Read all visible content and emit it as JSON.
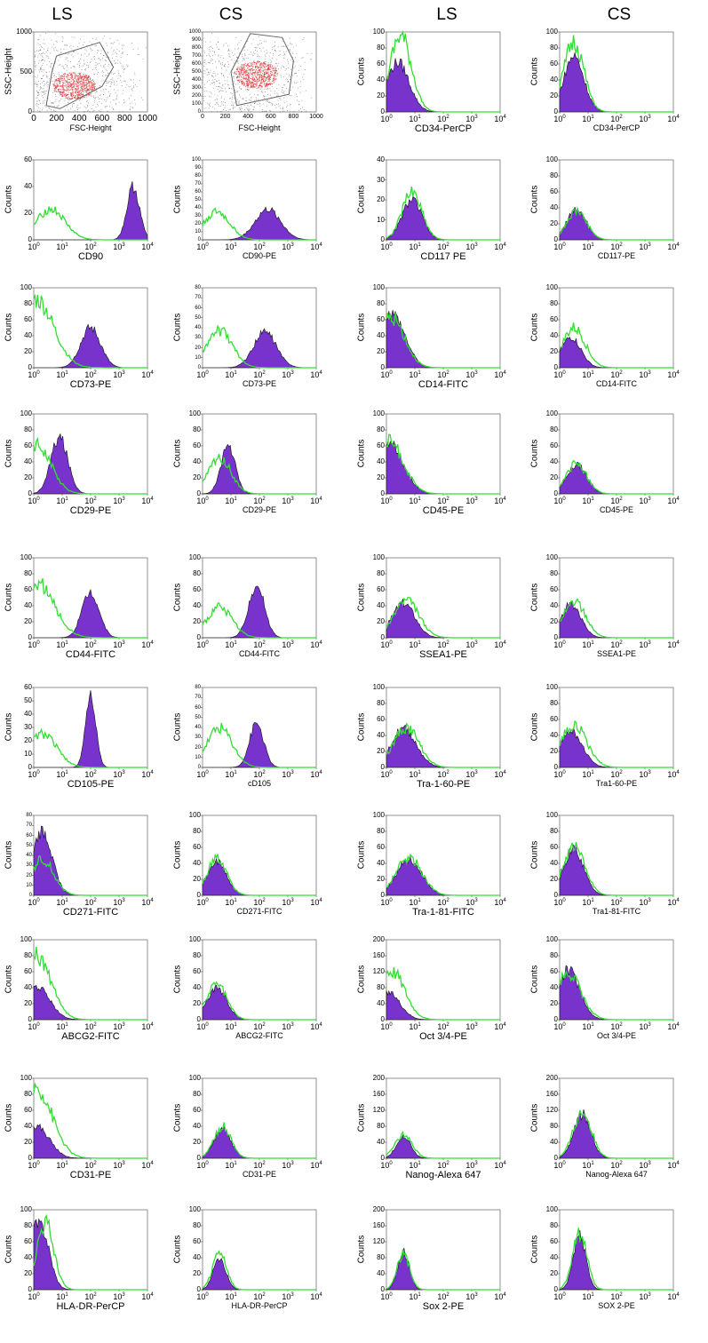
{
  "header": {
    "columns": [
      "LS",
      "CS",
      "LS",
      "CS"
    ]
  },
  "colors": {
    "isotype": "#33dd33",
    "stained_fill": "#7733cc",
    "stained_outline": "#111111",
    "scatter_dense": "#e03030",
    "scatter_sparse": "#222222"
  },
  "chart_data": [
    {
      "type": "scatter",
      "col": 0,
      "row": 0,
      "xlabel": "FSC-Height",
      "ylabel": "SSC-Height",
      "xticks": [
        "0",
        "200",
        "400",
        "600",
        "800",
        "1000"
      ],
      "yticks": [
        "1000",
        "500",
        "0"
      ],
      "xlim": [
        0,
        1000
      ],
      "ylim": [
        0,
        1000
      ],
      "gate": [
        [
          110,
          80
        ],
        [
          230,
          40
        ],
        [
          600,
          320
        ],
        [
          700,
          560
        ],
        [
          580,
          870
        ],
        [
          200,
          700
        ],
        [
          160,
          500
        ]
      ],
      "center": [
        350,
        330
      ]
    },
    {
      "type": "scatter",
      "col": 1,
      "row": 0,
      "xlabel": "FSC-Height",
      "ylabel": "SSC-Height",
      "xticks": [
        "0",
        "200",
        "400",
        "600",
        "800",
        "1000"
      ],
      "yticks": [
        "1000",
        "900",
        "800",
        "700",
        "600",
        "500",
        "400",
        "300",
        "200",
        "100",
        "0"
      ],
      "xlim": [
        0,
        1000
      ],
      "ylim": [
        0,
        1000
      ],
      "gate": [
        [
          300,
          80
        ],
        [
          760,
          220
        ],
        [
          800,
          640
        ],
        [
          700,
          930
        ],
        [
          420,
          980
        ],
        [
          250,
          500
        ]
      ],
      "center": [
        470,
        470
      ]
    },
    {
      "type": "area",
      "col": 2,
      "row": 0,
      "xlabel": "CD34-PerCP",
      "ylabel": "Counts",
      "ylim": [
        0,
        100
      ],
      "yticks": [
        "0",
        "20",
        "40",
        "60",
        "80",
        "100"
      ],
      "stained": {
        "peak": 0.4,
        "width": 0.4,
        "height": 62
      },
      "isotype": {
        "peak": 0.5,
        "width": 0.38,
        "height": 95
      }
    },
    {
      "type": "area",
      "col": 3,
      "row": 0,
      "xlabel": "CD34-PerCP",
      "ylabel": "Counts",
      "ylim": [
        0,
        100
      ],
      "yticks": [
        "0",
        "20",
        "40",
        "60",
        "80",
        "100"
      ],
      "stained": {
        "peak": 0.5,
        "width": 0.35,
        "height": 70
      },
      "isotype": {
        "peak": 0.5,
        "width": 0.35,
        "height": 88
      }
    },
    {
      "type": "area",
      "col": 0,
      "row": 1,
      "xlabel": "CD90",
      "ylabel": "Counts",
      "ylim": [
        0,
        60
      ],
      "yticks": [
        "0",
        "20",
        "40",
        "60"
      ],
      "stained": {
        "peak": 3.5,
        "width": 0.22,
        "height": 40
      },
      "isotype": {
        "peak": 0.6,
        "width": 0.5,
        "height": 23
      }
    },
    {
      "type": "area",
      "col": 1,
      "row": 1,
      "xlabel": "CD90-PE",
      "ylabel": "Counts",
      "ylim": [
        0,
        100
      ],
      "yticks": [
        "0",
        "10",
        "20",
        "30",
        "40",
        "50",
        "60",
        "70",
        "80",
        "90",
        "100"
      ],
      "stained": {
        "peak": 2.3,
        "width": 0.45,
        "height": 38
      },
      "isotype": {
        "peak": 0.5,
        "width": 0.45,
        "height": 35
      }
    },
    {
      "type": "area",
      "col": 2,
      "row": 1,
      "xlabel": "CD117 PE",
      "ylabel": "Counts",
      "ylim": [
        0,
        40
      ],
      "yticks": [
        "0",
        "10",
        "20",
        "30",
        "40"
      ],
      "stained": {
        "peak": 0.9,
        "width": 0.35,
        "height": 20
      },
      "isotype": {
        "peak": 0.9,
        "width": 0.35,
        "height": 24
      }
    },
    {
      "type": "area",
      "col": 3,
      "row": 1,
      "xlabel": "CD117-PE",
      "ylabel": "Counts",
      "ylim": [
        0,
        100
      ],
      "yticks": [
        "0",
        "20",
        "40",
        "60",
        "80",
        "100"
      ],
      "stained": {
        "peak": 0.6,
        "width": 0.35,
        "height": 38
      },
      "isotype": {
        "peak": 0.6,
        "width": 0.35,
        "height": 36
      }
    },
    {
      "type": "area",
      "col": 0,
      "row": 2,
      "xlabel": "CD73-PE",
      "ylabel": "Counts",
      "ylim": [
        0,
        100
      ],
      "yticks": [
        "0",
        "20",
        "40",
        "60",
        "80",
        "100"
      ],
      "stained": {
        "peak": 2.0,
        "width": 0.35,
        "height": 50
      },
      "isotype": {
        "peak": 0.1,
        "width": 0.6,
        "height": 85
      }
    },
    {
      "type": "area",
      "col": 1,
      "row": 2,
      "xlabel": "CD73-PE",
      "ylabel": "Counts",
      "ylim": [
        0,
        80
      ],
      "yticks": [
        "0",
        "10",
        "20",
        "30",
        "40",
        "50",
        "60",
        "70",
        "80"
      ],
      "stained": {
        "peak": 2.2,
        "width": 0.4,
        "height": 36
      },
      "isotype": {
        "peak": 0.6,
        "width": 0.45,
        "height": 37
      }
    },
    {
      "type": "area",
      "col": 2,
      "row": 2,
      "xlabel": "CD14-FITC",
      "ylabel": "Counts",
      "ylim": [
        0,
        100
      ],
      "yticks": [
        "0",
        "20",
        "40",
        "60",
        "80",
        "100"
      ],
      "stained": {
        "peak": 0.2,
        "width": 0.45,
        "height": 68
      },
      "isotype": {
        "peak": 0.2,
        "width": 0.45,
        "height": 62
      }
    },
    {
      "type": "area",
      "col": 3,
      "row": 2,
      "xlabel": "CD14-FITC",
      "ylabel": "Counts",
      "ylim": [
        0,
        100
      ],
      "yticks": [
        "0",
        "20",
        "40",
        "60",
        "80",
        "100"
      ],
      "stained": {
        "peak": 0.4,
        "width": 0.35,
        "height": 38
      },
      "isotype": {
        "peak": 0.5,
        "width": 0.4,
        "height": 50
      }
    },
    {
      "type": "area",
      "col": 0,
      "row": 3,
      "xlabel": "CD29-PE",
      "ylabel": "Counts",
      "ylim": [
        0,
        100
      ],
      "yticks": [
        "0",
        "20",
        "40",
        "60",
        "80",
        "100"
      ],
      "stained": {
        "peak": 0.9,
        "width": 0.3,
        "height": 70
      },
      "isotype": {
        "peak": 0.1,
        "width": 0.5,
        "height": 62
      }
    },
    {
      "type": "area",
      "col": 1,
      "row": 3,
      "xlabel": "CD29-PE",
      "ylabel": "Counts",
      "ylim": [
        0,
        100
      ],
      "yticks": [
        "0",
        "20",
        "40",
        "60",
        "80",
        "100"
      ],
      "stained": {
        "peak": 0.9,
        "width": 0.25,
        "height": 60
      },
      "isotype": {
        "peak": 0.6,
        "width": 0.4,
        "height": 45
      }
    },
    {
      "type": "area",
      "col": 2,
      "row": 3,
      "xlabel": "CD45-PE",
      "ylabel": "Counts",
      "ylim": [
        0,
        100
      ],
      "yticks": [
        "0",
        "20",
        "40",
        "60",
        "80",
        "100"
      ],
      "stained": {
        "peak": 0.1,
        "width": 0.5,
        "height": 62
      },
      "isotype": {
        "peak": 0.1,
        "width": 0.5,
        "height": 65
      }
    },
    {
      "type": "area",
      "col": 3,
      "row": 3,
      "xlabel": "CD45-PE",
      "ylabel": "Counts",
      "ylim": [
        0,
        100
      ],
      "yticks": [
        "0",
        "20",
        "40",
        "60",
        "80",
        "100"
      ],
      "stained": {
        "peak": 0.6,
        "width": 0.35,
        "height": 36
      },
      "isotype": {
        "peak": 0.6,
        "width": 0.35,
        "height": 38
      }
    },
    {
      "type": "area",
      "col": 0,
      "row": 4,
      "xlabel": "CD44-FITC",
      "ylabel": "Counts",
      "ylim": [
        0,
        100
      ],
      "yticks": [
        "0",
        "20",
        "40",
        "60",
        "80",
        "100"
      ],
      "stained": {
        "peak": 2.0,
        "width": 0.3,
        "height": 58
      },
      "isotype": {
        "peak": 0.1,
        "width": 0.6,
        "height": 70
      }
    },
    {
      "type": "area",
      "col": 1,
      "row": 4,
      "xlabel": "CD44-FITC",
      "ylabel": "Counts",
      "ylim": [
        0,
        100
      ],
      "yticks": [
        "0",
        "20",
        "40",
        "60",
        "80",
        "100"
      ],
      "stained": {
        "peak": 1.9,
        "width": 0.28,
        "height": 66
      },
      "isotype": {
        "peak": 0.6,
        "width": 0.45,
        "height": 38
      }
    },
    {
      "type": "area",
      "col": 2,
      "row": 4,
      "xlabel": "SSEA1-PE",
      "ylabel": "Counts",
      "ylim": [
        0,
        100
      ],
      "yticks": [
        "0",
        "20",
        "40",
        "60",
        "80",
        "100"
      ],
      "stained": {
        "peak": 0.6,
        "width": 0.4,
        "height": 44
      },
      "isotype": {
        "peak": 0.7,
        "width": 0.45,
        "height": 46
      }
    },
    {
      "type": "area",
      "col": 3,
      "row": 4,
      "xlabel": "SSEA1-PE",
      "ylabel": "Counts",
      "ylim": [
        0,
        100
      ],
      "yticks": [
        "0",
        "20",
        "40",
        "60",
        "80",
        "100"
      ],
      "stained": {
        "peak": 0.4,
        "width": 0.35,
        "height": 42
      },
      "isotype": {
        "peak": 0.5,
        "width": 0.4,
        "height": 46
      }
    },
    {
      "type": "area",
      "col": 0,
      "row": 5,
      "xlabel": "CD105-PE",
      "ylabel": "Counts",
      "ylim": [
        0,
        60
      ],
      "yticks": [
        "0",
        "10",
        "20",
        "30",
        "40",
        "50",
        "60"
      ],
      "stained": {
        "peak": 2.0,
        "width": 0.18,
        "height": 55
      },
      "isotype": {
        "peak": 0.3,
        "width": 0.5,
        "height": 25
      }
    },
    {
      "type": "area",
      "col": 1,
      "row": 5,
      "xlabel": "cD105",
      "ylabel": "Counts",
      "ylim": [
        0,
        80
      ],
      "yticks": [
        "0",
        "10",
        "20",
        "30",
        "40",
        "50",
        "60",
        "70",
        "80"
      ],
      "stained": {
        "peak": 1.9,
        "width": 0.25,
        "height": 44
      },
      "isotype": {
        "peak": 0.6,
        "width": 0.45,
        "height": 40
      }
    },
    {
      "type": "area",
      "col": 2,
      "row": 5,
      "xlabel": "Tra-1-60-PE",
      "ylabel": "Counts",
      "ylim": [
        0,
        100
      ],
      "yticks": [
        "0",
        "20",
        "40",
        "60",
        "80",
        "100"
      ],
      "stained": {
        "peak": 0.6,
        "width": 0.45,
        "height": 48
      },
      "isotype": {
        "peak": 0.7,
        "width": 0.45,
        "height": 50
      }
    },
    {
      "type": "area",
      "col": 3,
      "row": 5,
      "xlabel": "Tra1-60-PE",
      "ylabel": "Counts",
      "ylim": [
        0,
        100
      ],
      "yticks": [
        "0",
        "20",
        "40",
        "60",
        "80",
        "100"
      ],
      "stained": {
        "peak": 0.4,
        "width": 0.4,
        "height": 46
      },
      "isotype": {
        "peak": 0.5,
        "width": 0.45,
        "height": 54
      }
    },
    {
      "type": "area",
      "col": 0,
      "row": 6,
      "xlabel": "CD271-FITC",
      "ylabel": "Counts",
      "ylim": [
        0,
        80
      ],
      "yticks": [
        "0",
        "10",
        "20",
        "30",
        "40",
        "50",
        "60",
        "70",
        "80"
      ],
      "stained": {
        "peak": 0.3,
        "width": 0.35,
        "height": 62
      },
      "isotype": {
        "peak": 0.3,
        "width": 0.4,
        "height": 36
      }
    },
    {
      "type": "area",
      "col": 1,
      "row": 6,
      "xlabel": "CD271-FITC",
      "ylabel": "Counts",
      "ylim": [
        0,
        100
      ],
      "yticks": [
        "0",
        "20",
        "40",
        "60",
        "80",
        "100"
      ],
      "stained": {
        "peak": 0.5,
        "width": 0.35,
        "height": 42
      },
      "isotype": {
        "peak": 0.5,
        "width": 0.35,
        "height": 45
      }
    },
    {
      "type": "area",
      "col": 2,
      "row": 6,
      "xlabel": "Tra-1-81-FITC",
      "ylabel": "Counts",
      "ylim": [
        0,
        100
      ],
      "yticks": [
        "0",
        "20",
        "40",
        "60",
        "80",
        "100"
      ],
      "stained": {
        "peak": 0.8,
        "width": 0.45,
        "height": 45
      },
      "isotype": {
        "peak": 0.8,
        "width": 0.45,
        "height": 48
      }
    },
    {
      "type": "area",
      "col": 3,
      "row": 6,
      "xlabel": "Tra1-81-FITC",
      "ylabel": "Counts",
      "ylim": [
        0,
        100
      ],
      "yticks": [
        "0",
        "20",
        "40",
        "60",
        "80",
        "100"
      ],
      "stained": {
        "peak": 0.5,
        "width": 0.35,
        "height": 58
      },
      "isotype": {
        "peak": 0.5,
        "width": 0.38,
        "height": 62
      }
    },
    {
      "type": "area",
      "col": 0,
      "row": 7,
      "xlabel": "ABCG2-FITC",
      "ylabel": "Counts",
      "ylim": [
        0,
        100
      ],
      "yticks": [
        "0",
        "20",
        "40",
        "60",
        "80",
        "100"
      ],
      "stained": {
        "peak": 0.1,
        "width": 0.45,
        "height": 42
      },
      "isotype": {
        "peak": 0.1,
        "width": 0.5,
        "height": 80
      }
    },
    {
      "type": "area",
      "col": 1,
      "row": 7,
      "xlabel": "ABCG2-FITC",
      "ylabel": "Counts",
      "ylim": [
        0,
        100
      ],
      "yticks": [
        "0",
        "20",
        "40",
        "60",
        "80",
        "100"
      ],
      "stained": {
        "peak": 0.5,
        "width": 0.35,
        "height": 40
      },
      "isotype": {
        "peak": 0.5,
        "width": 0.35,
        "height": 44
      }
    },
    {
      "type": "area",
      "col": 2,
      "row": 7,
      "xlabel": "Oct 3/4-PE",
      "ylabel": "Counts",
      "ylim": [
        0,
        200
      ],
      "yticks": [
        "0",
        "40",
        "80",
        "120",
        "160",
        "200"
      ],
      "stained": {
        "peak": 0.1,
        "width": 0.4,
        "height": 65
      },
      "isotype": {
        "peak": 0.2,
        "width": 0.45,
        "height": 120
      }
    },
    {
      "type": "area",
      "col": 3,
      "row": 7,
      "xlabel": "Oct 3/4-PE",
      "ylabel": "Counts",
      "ylim": [
        0,
        100
      ],
      "yticks": [
        "0",
        "20",
        "40",
        "60",
        "80",
        "100"
      ],
      "stained": {
        "peak": 0.3,
        "width": 0.4,
        "height": 62
      },
      "isotype": {
        "peak": 0.3,
        "width": 0.45,
        "height": 58
      }
    },
    {
      "type": "area",
      "col": 0,
      "row": 8,
      "xlabel": "CD31-PE",
      "ylabel": "Counts",
      "ylim": [
        0,
        100
      ],
      "yticks": [
        "0",
        "20",
        "40",
        "60",
        "80",
        "100"
      ],
      "stained": {
        "peak": 0.1,
        "width": 0.45,
        "height": 40
      },
      "isotype": {
        "peak": 0.1,
        "width": 0.55,
        "height": 88
      }
    },
    {
      "type": "area",
      "col": 1,
      "row": 8,
      "xlabel": "CD31-PE",
      "ylabel": "Counts",
      "ylim": [
        0,
        100
      ],
      "yticks": [
        "0",
        "20",
        "40",
        "60",
        "80",
        "100"
      ],
      "stained": {
        "peak": 0.7,
        "width": 0.3,
        "height": 36
      },
      "isotype": {
        "peak": 0.7,
        "width": 0.3,
        "height": 40
      }
    },
    {
      "type": "area",
      "col": 2,
      "row": 8,
      "xlabel": "Nanog-Alexa 647",
      "ylabel": "Counts",
      "ylim": [
        0,
        200
      ],
      "yticks": [
        "0",
        "40",
        "80",
        "120",
        "160",
        "200"
      ],
      "stained": {
        "peak": 0.6,
        "width": 0.25,
        "height": 55
      },
      "isotype": {
        "peak": 0.6,
        "width": 0.3,
        "height": 60
      }
    },
    {
      "type": "area",
      "col": 3,
      "row": 8,
      "xlabel": "Nanog-Alexa 647",
      "ylabel": "Counts",
      "ylim": [
        0,
        200
      ],
      "yticks": [
        "0",
        "40",
        "80",
        "120",
        "160",
        "200"
      ],
      "stained": {
        "peak": 0.8,
        "width": 0.3,
        "height": 110
      },
      "isotype": {
        "peak": 0.8,
        "width": 0.32,
        "height": 115
      }
    },
    {
      "type": "area",
      "col": 0,
      "row": 9,
      "xlabel": "HLA-DR-PerCP",
      "ylabel": "Counts",
      "ylim": [
        0,
        100
      ],
      "yticks": [
        "0",
        "20",
        "40",
        "60",
        "80",
        "100"
      ],
      "stained": {
        "peak": 0.25,
        "width": 0.3,
        "height": 80
      },
      "isotype": {
        "peak": 0.4,
        "width": 0.3,
        "height": 85
      }
    },
    {
      "type": "area",
      "col": 1,
      "row": 9,
      "xlabel": "HLA-DR-PerCP",
      "ylabel": "Counts",
      "ylim": [
        0,
        100
      ],
      "yticks": [
        "0",
        "20",
        "40",
        "60",
        "80",
        "100"
      ],
      "stained": {
        "peak": 0.6,
        "width": 0.22,
        "height": 40
      },
      "isotype": {
        "peak": 0.6,
        "width": 0.24,
        "height": 46
      }
    },
    {
      "type": "area",
      "col": 2,
      "row": 9,
      "xlabel": "Sox 2-PE",
      "ylabel": "Counts",
      "ylim": [
        0,
        200
      ],
      "yticks": [
        "0",
        "40",
        "80",
        "120",
        "160",
        "200"
      ],
      "stained": {
        "peak": 0.6,
        "width": 0.2,
        "height": 95
      },
      "isotype": {
        "peak": 0.6,
        "width": 0.22,
        "height": 90
      }
    },
    {
      "type": "area",
      "col": 3,
      "row": 9,
      "xlabel": "SOX 2-PE",
      "ylabel": "Counts",
      "ylim": [
        0,
        100
      ],
      "yticks": [
        "0",
        "20",
        "40",
        "60",
        "80",
        "100"
      ],
      "stained": {
        "peak": 0.7,
        "width": 0.22,
        "height": 68
      },
      "isotype": {
        "peak": 0.7,
        "width": 0.25,
        "height": 72
      }
    }
  ]
}
